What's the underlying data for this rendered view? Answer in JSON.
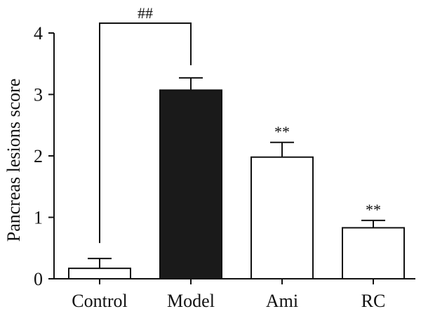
{
  "chart_data": {
    "type": "bar",
    "title": "",
    "xlabel": "",
    "ylabel": "Pancreas lesions score",
    "ylim": [
      0,
      4
    ],
    "yticks": [
      0,
      1,
      2,
      3,
      4
    ],
    "categories": [
      "Control",
      "Model",
      "Ami",
      "RC"
    ],
    "values": [
      0.17,
      3.07,
      1.98,
      0.83
    ],
    "errors": [
      0.16,
      0.2,
      0.24,
      0.12
    ],
    "bar_fills": [
      "#ffffff",
      "#1a1a1a",
      "#ffffff",
      "#ffffff"
    ],
    "annotations": [
      "",
      "",
      "**",
      "**"
    ],
    "significance_bracket": {
      "from": 0,
      "to": 1,
      "label": "##"
    },
    "grid": false,
    "legend": "none"
  }
}
